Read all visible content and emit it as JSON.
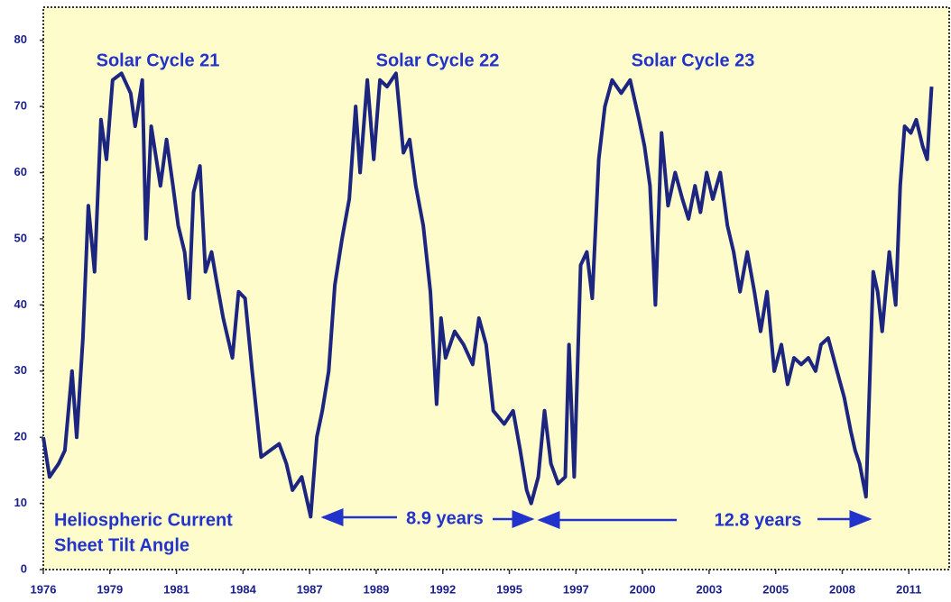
{
  "chart_data": {
    "type": "line",
    "annotations": [
      "Solar Cycle 21",
      "Solar Cycle 22",
      "Solar Cycle 23",
      "Heliospheric Current",
      "Sheet Tilt Angle",
      "8.9 years",
      "12.8 years"
    ],
    "color": "#1c2580",
    "xlim": [
      1976,
      2012.6
    ],
    "ylim": [
      0,
      85
    ],
    "yticks": [
      0,
      10,
      20,
      30,
      40,
      50,
      60,
      70,
      80
    ],
    "xticks": [
      {
        "value": 1976,
        "label": "1976"
      },
      {
        "value": 1978.69,
        "label": "1979"
      },
      {
        "value": 1981.38,
        "label": "1981"
      },
      {
        "value": 1984.07,
        "label": "1984"
      },
      {
        "value": 1986.76,
        "label": "1987"
      },
      {
        "value": 1989.45,
        "label": "1989"
      },
      {
        "value": 1992.14,
        "label": "1992"
      },
      {
        "value": 1994.83,
        "label": "1995"
      },
      {
        "value": 1997.52,
        "label": "1997"
      },
      {
        "value": 2000.21,
        "label": "2000"
      },
      {
        "value": 2002.9,
        "label": "2003"
      },
      {
        "value": 2005.59,
        "label": "2005"
      },
      {
        "value": 2008.28,
        "label": "2008"
      },
      {
        "value": 2010.97,
        "label": "2011"
      }
    ],
    "x": [
      1976.0,
      1976.25,
      1976.62,
      1976.87,
      1977.16,
      1977.35,
      1977.6,
      1977.82,
      1978.07,
      1978.33,
      1978.55,
      1978.8,
      1979.16,
      1979.53,
      1979.71,
      1980.0,
      1980.15,
      1980.36,
      1980.73,
      1980.98,
      1981.24,
      1981.45,
      1981.71,
      1981.89,
      1982.07,
      1982.33,
      1982.55,
      1982.8,
      1982.98,
      1983.27,
      1983.64,
      1983.89,
      1984.15,
      1984.44,
      1984.8,
      1985.16,
      1985.53,
      1985.82,
      1986.07,
      1986.44,
      1986.8,
      1987.05,
      1987.27,
      1987.53,
      1987.78,
      1988.07,
      1988.36,
      1988.62,
      1988.8,
      1989.09,
      1989.35,
      1989.6,
      1989.89,
      1990.25,
      1990.55,
      1990.8,
      1991.05,
      1991.35,
      1991.64,
      1991.89,
      1992.07,
      1992.25,
      1992.62,
      1992.98,
      1993.35,
      1993.6,
      1993.89,
      1994.18,
      1994.62,
      1994.98,
      1995.27,
      1995.53,
      1995.71,
      1996.0,
      1996.25,
      1996.51,
      1996.8,
      1997.09,
      1997.24,
      1997.45,
      1997.71,
      1997.96,
      1998.18,
      1998.44,
      1998.69,
      1998.98,
      1999.35,
      1999.71,
      2000.07,
      2000.29,
      2000.51,
      2000.73,
      2000.98,
      2001.24,
      2001.53,
      2001.82,
      2002.07,
      2002.33,
      2002.55,
      2002.8,
      2003.05,
      2003.35,
      2003.64,
      2003.89,
      2004.15,
      2004.44,
      2004.73,
      2004.98,
      2005.24,
      2005.53,
      2005.82,
      2006.07,
      2006.33,
      2006.62,
      2006.91,
      2007.2,
      2007.42,
      2007.71,
      2008.07,
      2008.36,
      2008.62,
      2008.8,
      2008.98,
      2009.24,
      2009.53,
      2009.71,
      2009.89,
      2010.18,
      2010.44,
      2010.62,
      2010.8,
      2011.05,
      2011.27,
      2011.53,
      2011.71,
      2011.89
    ],
    "values": [
      20,
      14,
      16,
      18,
      30,
      20,
      35,
      55,
      45,
      68,
      62,
      74,
      75,
      72,
      67,
      74,
      50,
      67,
      58,
      65,
      58,
      52,
      48,
      41,
      57,
      61,
      45,
      48,
      44,
      38,
      32,
      42,
      41,
      30,
      17,
      18,
      19,
      16,
      12,
      14,
      8,
      20,
      24,
      30,
      43,
      50,
      56,
      70,
      60,
      74,
      62,
      74,
      73,
      75,
      63,
      65,
      58,
      52,
      42,
      25,
      38,
      32,
      36,
      34,
      31,
      38,
      34,
      24,
      22,
      24,
      18,
      12,
      10,
      14,
      24,
      16,
      13,
      14,
      34,
      14,
      46,
      48,
      41,
      62,
      70,
      74,
      72,
      74,
      68,
      64,
      58,
      40,
      66,
      55,
      60,
      56,
      53,
      58,
      54,
      60,
      56,
      60,
      52,
      48,
      42,
      48,
      42,
      36,
      42,
      30,
      34,
      28,
      32,
      31,
      32,
      30,
      34,
      35,
      30,
      26,
      21,
      18,
      16,
      11,
      45,
      42,
      36,
      48,
      40,
      58,
      67,
      66,
      68,
      64,
      62,
      73
    ]
  }
}
